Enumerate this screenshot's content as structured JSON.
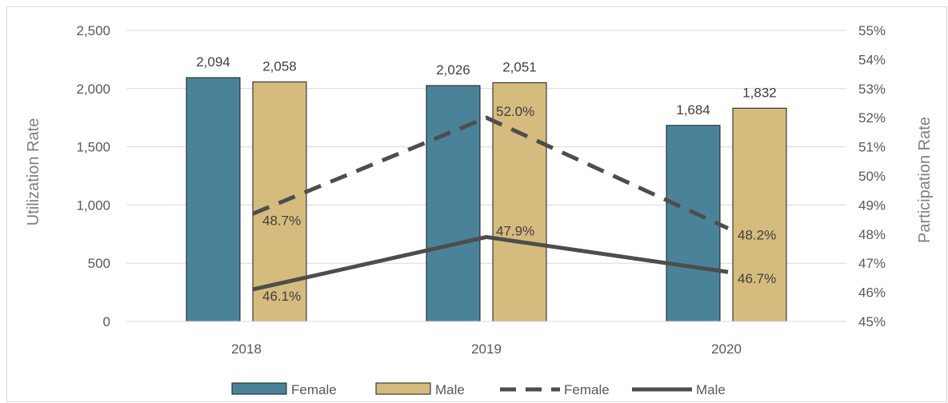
{
  "chart_data": {
    "type": "bar",
    "categories": [
      "2018",
      "2019",
      "2020"
    ],
    "bar_series": [
      {
        "name": "Female",
        "values": [
          2094,
          2026,
          1684
        ],
        "labels": [
          "2,094",
          "2,026",
          "1,684"
        ],
        "color": "#4a8399"
      },
      {
        "name": "Male",
        "values": [
          2058,
          2051,
          1832
        ],
        "labels": [
          "2,058",
          "2,051",
          "1,832"
        ],
        "color": "#d5bb7d"
      }
    ],
    "line_series": [
      {
        "name": "Female",
        "style": "dashed",
        "values": [
          48.7,
          52.0,
          48.2
        ],
        "labels": [
          "48.7%",
          "52.0%",
          "48.2%"
        ],
        "color": "#4d4d4d"
      },
      {
        "name": "Male",
        "style": "solid",
        "values": [
          46.1,
          47.9,
          46.7
        ],
        "labels": [
          "46.1%",
          "47.9%",
          "46.7%"
        ],
        "color": "#4d4d4d"
      }
    ],
    "ylabel": "Utilization Rate",
    "ylim": [
      0,
      2500
    ],
    "yticks": [
      0,
      500,
      1000,
      1500,
      2000,
      2500
    ],
    "yticklabels": [
      "0",
      "500",
      "1,000",
      "1,500",
      "2,000",
      "2,500"
    ],
    "y2label": "Participation Rate",
    "y2lim": [
      45,
      55
    ],
    "y2ticks": [
      45,
      46,
      47,
      48,
      49,
      50,
      51,
      52,
      53,
      54,
      55
    ],
    "y2ticklabels": [
      "45%",
      "46%",
      "47%",
      "48%",
      "49%",
      "50%",
      "51%",
      "52%",
      "53%",
      "54%",
      "55%"
    ],
    "grid": true,
    "legend_position": "bottom",
    "legend": [
      {
        "label": "Female",
        "kind": "bar",
        "color": "#4a8399"
      },
      {
        "label": "Male",
        "kind": "bar",
        "color": "#d5bb7d"
      },
      {
        "label": "Female",
        "kind": "dashed-line",
        "color": "#4d4d4d"
      },
      {
        "label": "Male",
        "kind": "solid-line",
        "color": "#4d4d4d"
      }
    ]
  }
}
